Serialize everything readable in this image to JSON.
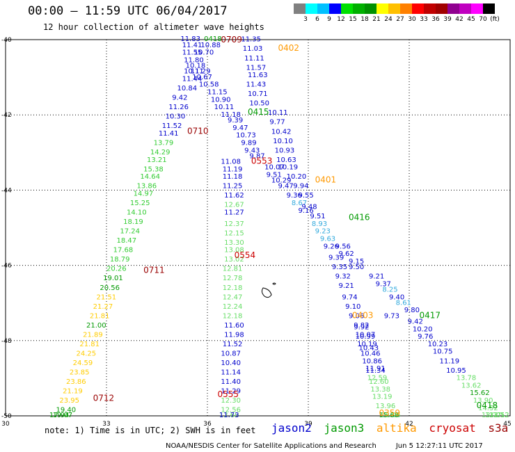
{
  "header": {
    "title": "00:00 – 11:59 UTC 06/04/2017",
    "subtitle": "12 hour collection of altimeter wave heights"
  },
  "colorbar": {
    "colors": [
      "#808080",
      "#00ffff",
      "#00c0ff",
      "#0000ff",
      "#00e000",
      "#00b000",
      "#009000",
      "#ffff00",
      "#ffc000",
      "#ff8000",
      "#ff0000",
      "#c00000",
      "#a00000",
      "#900090",
      "#c000c0",
      "#ff00ff",
      "#000000"
    ],
    "labels": [
      "3",
      "6",
      "9",
      "12",
      "15",
      "18",
      "21",
      "24",
      "27",
      "30",
      "33",
      "36",
      "39",
      "42",
      "45",
      "70",
      "(ft)"
    ]
  },
  "map": {
    "x_ticks": [
      "30",
      "33",
      "36",
      "39",
      "42",
      "45"
    ],
    "y_ticks": [
      "-40",
      "-42",
      "-44",
      "-46",
      "-48",
      "-50"
    ],
    "lon_range": [
      30,
      45
    ],
    "lat_range": [
      -50,
      -40
    ]
  },
  "legend": {
    "jason2": {
      "label": "jason2",
      "color": "#0000cc"
    },
    "jason3": {
      "label": "jason3",
      "color": "#009900"
    },
    "altika": {
      "label": "altika",
      "color": "#ff9900"
    },
    "cryosat": {
      "label": "cryosat",
      "color": "#cc0000"
    },
    "s3a": {
      "label": "s3a",
      "color": "#990000"
    }
  },
  "note": "note: 1) Time is in UTC; 2) SWH is in feet",
  "footer": {
    "center": "NOAA/NESDIS Center for Satellite Applications and Research",
    "timestamp": "Jun  5 12:27:11 UTC 2017"
  },
  "time_labels": [
    {
      "text": "0709",
      "lon": 36.4,
      "lat": -40.0,
      "color": "#990000"
    },
    {
      "text": "0402",
      "lon": 38.1,
      "lat": -40.3,
      "color": "#ff9900"
    },
    {
      "text": "0415",
      "lon": 37.2,
      "lat": -42.0,
      "color": "#009900"
    },
    {
      "text": "0710",
      "lon": 35.4,
      "lat": -42.5,
      "color": "#990000"
    },
    {
      "text": "0553",
      "lon": 37.3,
      "lat": -43.3,
      "color": "#cc0000"
    },
    {
      "text": "0401",
      "lon": 39.2,
      "lat": -43.8,
      "color": "#ff9900"
    },
    {
      "text": "0416",
      "lon": 40.2,
      "lat": -44.8,
      "color": "#009900"
    },
    {
      "text": "0554",
      "lon": 36.8,
      "lat": -45.8,
      "color": "#cc0000"
    },
    {
      "text": "0711",
      "lon": 34.1,
      "lat": -46.2,
      "color": "#990000"
    },
    {
      "text": "0403",
      "lon": 40.3,
      "lat": -47.4,
      "color": "#ff9900"
    },
    {
      "text": "0417",
      "lon": 42.3,
      "lat": -47.4,
      "color": "#009900"
    },
    {
      "text": "0555",
      "lon": 36.3,
      "lat": -49.5,
      "color": "#cc0000"
    },
    {
      "text": "0712",
      "lon": 32.6,
      "lat": -49.6,
      "color": "#990000"
    },
    {
      "text": "0359",
      "lon": 41.1,
      "lat": -50.0,
      "color": "#ff9900"
    },
    {
      "text": "0418",
      "lon": 44.0,
      "lat": -49.8,
      "color": "#009900"
    }
  ],
  "points": [
    {
      "v": "11.83",
      "lon": 35.2,
      "lat": -40.0,
      "c": "#0000cc"
    },
    {
      "v": "0418",
      "lon": 35.9,
      "lat": -40.0,
      "c": "#009900"
    },
    {
      "v": "11.35",
      "lon": 37.0,
      "lat": -40.05,
      "c": "#0000cc"
    },
    {
      "v": "11.41",
      "lon": 35.25,
      "lat": -40.2,
      "c": "#0000cc"
    },
    {
      "v": "10.88",
      "lon": 35.8,
      "lat": -40.2,
      "c": "#0000cc"
    },
    {
      "v": "11.55",
      "lon": 35.25,
      "lat": -40.4,
      "c": "#0000cc"
    },
    {
      "v": "10.70",
      "lon": 35.6,
      "lat": -40.4,
      "c": "#0000cc"
    },
    {
      "v": "11.03",
      "lon": 37.05,
      "lat": -40.3,
      "c": "#0000cc"
    },
    {
      "v": "11.80",
      "lon": 35.3,
      "lat": -40.6,
      "c": "#0000cc"
    },
    {
      "v": "11.11",
      "lon": 37.1,
      "lat": -40.55,
      "c": "#0000cc"
    },
    {
      "v": "10.18",
      "lon": 35.35,
      "lat": -40.75,
      "c": "#0000cc"
    },
    {
      "v": "11.57",
      "lon": 37.15,
      "lat": -40.8,
      "c": "#0000cc"
    },
    {
      "v": "10.11",
      "lon": 35.3,
      "lat": -40.9,
      "c": "#0000cc"
    },
    {
      "v": "11.29",
      "lon": 35.5,
      "lat": -40.9,
      "c": "#0000cc"
    },
    {
      "v": "11.63",
      "lon": 37.2,
      "lat": -41.0,
      "c": "#0000cc"
    },
    {
      "v": "11.44",
      "lon": 35.25,
      "lat": -41.1,
      "c": "#0000cc"
    },
    {
      "v": "10.67",
      "lon": 35.55,
      "lat": -41.05,
      "c": "#0000cc"
    },
    {
      "v": "10.58",
      "lon": 35.75,
      "lat": -41.25,
      "c": "#0000cc"
    },
    {
      "v": "11.43",
      "lon": 37.15,
      "lat": -41.25,
      "c": "#0000cc"
    },
    {
      "v": "10.84",
      "lon": 35.1,
      "lat": -41.35,
      "c": "#0000cc"
    },
    {
      "v": "11.15",
      "lon": 36.0,
      "lat": -41.45,
      "c": "#0000cc"
    },
    {
      "v": "10.71",
      "lon": 37.2,
      "lat": -41.5,
      "c": "#0000cc"
    },
    {
      "v": "9.42",
      "lon": 34.95,
      "lat": -41.6,
      "c": "#0000cc"
    },
    {
      "v": "10.90",
      "lon": 36.1,
      "lat": -41.65,
      "c": "#0000cc"
    },
    {
      "v": "10.50",
      "lon": 37.25,
      "lat": -41.75,
      "c": "#0000cc"
    },
    {
      "v": "11.26",
      "lon": 34.85,
      "lat": -41.85,
      "c": "#0000cc"
    },
    {
      "v": "10.11",
      "lon": 36.2,
      "lat": -41.85,
      "c": "#0000cc"
    },
    {
      "v": "11.18",
      "lon": 36.4,
      "lat": -42.05,
      "c": "#0000cc"
    },
    {
      "v": "10.11",
      "lon": 37.8,
      "lat": -42.0,
      "c": "#0000cc"
    },
    {
      "v": "10.30",
      "lon": 34.75,
      "lat": -42.1,
      "c": "#0000cc"
    },
    {
      "v": "9.39",
      "lon": 36.6,
      "lat": -42.2,
      "c": "#0000cc"
    },
    {
      "v": "9.77",
      "lon": 37.85,
      "lat": -42.25,
      "c": "#0000cc"
    },
    {
      "v": "11.52",
      "lon": 34.65,
      "lat": -42.35,
      "c": "#0000cc"
    },
    {
      "v": "9.47",
      "lon": 36.75,
      "lat": -42.4,
      "c": "#0000cc"
    },
    {
      "v": "10.42",
      "lon": 37.9,
      "lat": -42.5,
      "c": "#0000cc"
    },
    {
      "v": "11.41",
      "lon": 34.55,
      "lat": -42.55,
      "c": "#0000cc"
    },
    {
      "v": "10.73",
      "lon": 36.85,
      "lat": -42.6,
      "c": "#0000cc"
    },
    {
      "v": "13.79",
      "lon": 34.4,
      "lat": -42.8,
      "c": "#33cc33"
    },
    {
      "v": "9.89",
      "lon": 37.0,
      "lat": -42.8,
      "c": "#0000cc"
    },
    {
      "v": "10.10",
      "lon": 37.95,
      "lat": -42.75,
      "c": "#0000cc"
    },
    {
      "v": "9.43",
      "lon": 37.1,
      "lat": -43.0,
      "c": "#0000cc"
    },
    {
      "v": "14.29",
      "lon": 34.3,
      "lat": -43.05,
      "c": "#33cc33"
    },
    {
      "v": "10.93",
      "lon": 38.0,
      "lat": -43.0,
      "c": "#0000cc"
    },
    {
      "v": "9.87",
      "lon": 37.25,
      "lat": -43.15,
      "c": "#0000cc"
    },
    {
      "v": "13.21",
      "lon": 34.2,
      "lat": -43.25,
      "c": "#33cc33"
    },
    {
      "v": "10.63",
      "lon": 38.05,
      "lat": -43.25,
      "c": "#0000cc"
    },
    {
      "v": "11.08",
      "lon": 36.4,
      "lat": -43.3,
      "c": "#0000cc"
    },
    {
      "v": "15.38",
      "lon": 34.1,
      "lat": -43.5,
      "c": "#33cc33"
    },
    {
      "v": "11.19",
      "lon": 36.45,
      "lat": -43.5,
      "c": "#0000cc"
    },
    {
      "v": "10.07",
      "lon": 37.7,
      "lat": -43.45,
      "c": "#0000cc"
    },
    {
      "v": "10.19",
      "lon": 38.1,
      "lat": -43.45,
      "c": "#0000cc"
    },
    {
      "v": "14.64",
      "lon": 34.0,
      "lat": -43.7,
      "c": "#33cc33"
    },
    {
      "v": "11.18",
      "lon": 36.45,
      "lat": -43.7,
      "c": "#0000cc"
    },
    {
      "v": "9.51",
      "lon": 37.75,
      "lat": -43.65,
      "c": "#0000cc"
    },
    {
      "v": "10.20",
      "lon": 38.35,
      "lat": -43.7,
      "c": "#0000cc"
    },
    {
      "v": "10.29",
      "lon": 37.9,
      "lat": -43.8,
      "c": "#0000cc"
    },
    {
      "v": "13.86",
      "lon": 33.9,
      "lat": -43.95,
      "c": "#33cc33"
    },
    {
      "v": "11.25",
      "lon": 36.45,
      "lat": -43.95,
      "c": "#0000cc"
    },
    {
      "v": "9.47",
      "lon": 38.1,
      "lat": -43.95,
      "c": "#0000cc"
    },
    {
      "v": "9.94",
      "lon": 38.55,
      "lat": -43.95,
      "c": "#0000cc"
    },
    {
      "v": "14.97",
      "lon": 33.8,
      "lat": -44.15,
      "c": "#33cc33"
    },
    {
      "v": "11.62",
      "lon": 36.5,
      "lat": -44.2,
      "c": "#0000cc"
    },
    {
      "v": "9.36",
      "lon": 38.35,
      "lat": -44.2,
      "c": "#0000cc"
    },
    {
      "v": "9.55",
      "lon": 38.7,
      "lat": -44.2,
      "c": "#0000cc"
    },
    {
      "v": "15.25",
      "lon": 33.7,
      "lat": -44.4,
      "c": "#33cc33"
    },
    {
      "v": "12.67",
      "lon": 36.5,
      "lat": -44.45,
      "c": "#66dd66"
    },
    {
      "v": "8.67",
      "lon": 38.5,
      "lat": -44.4,
      "c": "#33aadd"
    },
    {
      "v": "9.48",
      "lon": 38.8,
      "lat": -44.5,
      "c": "#0000cc"
    },
    {
      "v": "14.10",
      "lon": 33.6,
      "lat": -44.65,
      "c": "#33cc33"
    },
    {
      "v": "11.27",
      "lon": 36.5,
      "lat": -44.65,
      "c": "#0000cc"
    },
    {
      "v": "9.16",
      "lon": 38.7,
      "lat": -44.6,
      "c": "#0000cc"
    },
    {
      "v": "9.51",
      "lon": 39.05,
      "lat": -44.75,
      "c": "#0000cc"
    },
    {
      "v": "18.19",
      "lon": 33.5,
      "lat": -44.9,
      "c": "#33cc33"
    },
    {
      "v": "12.37",
      "lon": 36.5,
      "lat": -44.95,
      "c": "#66dd66"
    },
    {
      "v": "8.93",
      "lon": 39.1,
      "lat": -44.95,
      "c": "#33aadd"
    },
    {
      "v": "17.24",
      "lon": 33.4,
      "lat": -45.15,
      "c": "#33cc33"
    },
    {
      "v": "12.15",
      "lon": 36.5,
      "lat": -45.2,
      "c": "#66dd66"
    },
    {
      "v": "9.23",
      "lon": 39.2,
      "lat": -45.15,
      "c": "#33aadd"
    },
    {
      "v": "18.47",
      "lon": 33.3,
      "lat": -45.4,
      "c": "#33cc33"
    },
    {
      "v": "13.30",
      "lon": 36.5,
      "lat": -45.45,
      "c": "#66dd66"
    },
    {
      "v": "9.63",
      "lon": 39.35,
      "lat": -45.35,
      "c": "#33aadd"
    },
    {
      "v": "17.68",
      "lon": 33.2,
      "lat": -45.65,
      "c": "#33cc33"
    },
    {
      "v": "13.08",
      "lon": 36.5,
      "lat": -45.65,
      "c": "#66dd66"
    },
    {
      "v": "9.26",
      "lon": 39.45,
      "lat": -45.55,
      "c": "#0000cc"
    },
    {
      "v": "9.56",
      "lon": 39.8,
      "lat": -45.55,
      "c": "#0000cc"
    },
    {
      "v": "9.62",
      "lon": 39.9,
      "lat": -45.75,
      "c": "#0000cc"
    },
    {
      "v": "18.79",
      "lon": 33.1,
      "lat": -45.9,
      "c": "#33cc33"
    },
    {
      "v": "13.02",
      "lon": 36.5,
      "lat": -45.9,
      "c": "#66dd66"
    },
    {
      "v": "9.39",
      "lon": 39.6,
      "lat": -45.85,
      "c": "#0000cc"
    },
    {
      "v": "9.15",
      "lon": 40.2,
      "lat": -45.95,
      "c": "#0000cc"
    },
    {
      "v": "20.26",
      "lon": 33.0,
      "lat": -46.15,
      "c": "#33cc33"
    },
    {
      "v": "12.81",
      "lon": 36.45,
      "lat": -46.15,
      "c": "#66dd66"
    },
    {
      "v": "9.35",
      "lon": 39.7,
      "lat": -46.1,
      "c": "#0000cc"
    },
    {
      "v": "9.50",
      "lon": 40.2,
      "lat": -46.1,
      "c": "#0000cc"
    },
    {
      "v": "19.01",
      "lon": 32.9,
      "lat": -46.4,
      "c": "#009900"
    },
    {
      "v": "12.78",
      "lon": 36.45,
      "lat": -46.4,
      "c": "#66dd66"
    },
    {
      "v": "9.32",
      "lon": 39.8,
      "lat": -46.35,
      "c": "#0000cc"
    },
    {
      "v": "9.21",
      "lon": 40.8,
      "lat": -46.35,
      "c": "#0000cc"
    },
    {
      "v": "20.56",
      "lon": 32.8,
      "lat": -46.65,
      "c": "#009900"
    },
    {
      "v": "12.18",
      "lon": 36.45,
      "lat": -46.65,
      "c": "#66dd66"
    },
    {
      "v": "9.21",
      "lon": 39.9,
      "lat": -46.6,
      "c": "#0000cc"
    },
    {
      "v": "9.37",
      "lon": 41.0,
      "lat": -46.55,
      "c": "#0000cc"
    },
    {
      "v": "8.25",
      "lon": 41.2,
      "lat": -46.7,
      "c": "#33aadd"
    },
    {
      "v": "21.51",
      "lon": 32.7,
      "lat": -46.9,
      "c": "#ffcc00"
    },
    {
      "v": "12.47",
      "lon": 36.45,
      "lat": -46.9,
      "c": "#66dd66"
    },
    {
      "v": "9.74",
      "lon": 40.0,
      "lat": -46.9,
      "c": "#0000cc"
    },
    {
      "v": "9.40",
      "lon": 41.4,
      "lat": -46.9,
      "c": "#0000cc"
    },
    {
      "v": "21.27",
      "lon": 32.6,
      "lat": -47.15,
      "c": "#ffcc00"
    },
    {
      "v": "12.24",
      "lon": 36.45,
      "lat": -47.15,
      "c": "#66dd66"
    },
    {
      "v": "9.10",
      "lon": 40.1,
      "lat": -47.15,
      "c": "#0000cc"
    },
    {
      "v": "8.61",
      "lon": 41.6,
      "lat": -47.05,
      "c": "#33aadd"
    },
    {
      "v": "9.80",
      "lon": 41.85,
      "lat": -47.25,
      "c": "#0000cc"
    },
    {
      "v": "21.81",
      "lon": 32.5,
      "lat": -47.4,
      "c": "#ffcc00"
    },
    {
      "v": "12.18",
      "lon": 36.45,
      "lat": -47.4,
      "c": "#66dd66"
    },
    {
      "v": "9.06",
      "lon": 40.2,
      "lat": -47.4,
      "c": "#0000cc"
    },
    {
      "v": "9.73",
      "lon": 41.25,
      "lat": -47.4,
      "c": "#0000cc"
    },
    {
      "v": "9.42",
      "lon": 41.95,
      "lat": -47.55,
      "c": "#0000cc"
    },
    {
      "v": "21.00",
      "lon": 32.4,
      "lat": -47.65,
      "c": "#009900"
    },
    {
      "v": "11.60",
      "lon": 36.5,
      "lat": -47.65,
      "c": "#0000cc"
    },
    {
      "v": "9.82",
      "lon": 40.35,
      "lat": -47.65,
      "c": "#0000cc"
    },
    {
      "v": "9.92",
      "lon": 40.35,
      "lat": -47.7,
      "c": "#0000cc"
    },
    {
      "v": "10.20",
      "lon": 42.1,
      "lat": -47.75,
      "c": "#0000cc"
    },
    {
      "v": "21.89",
      "lon": 32.3,
      "lat": -47.9,
      "c": "#ffcc00"
    },
    {
      "v": "11.98",
      "lon": 36.5,
      "lat": -47.9,
      "c": "#0000cc"
    },
    {
      "v": "10.07",
      "lon": 40.4,
      "lat": -47.9,
      "c": "#0000cc"
    },
    {
      "v": "10.99",
      "lon": 40.4,
      "lat": -47.95,
      "c": "#0000cc"
    },
    {
      "v": "9.76",
      "lon": 42.25,
      "lat": -47.95,
      "c": "#0000cc"
    },
    {
      "v": "21.81",
      "lon": 32.2,
      "lat": -48.15,
      "c": "#ffcc00"
    },
    {
      "v": "11.52",
      "lon": 36.45,
      "lat": -48.15,
      "c": "#0000cc"
    },
    {
      "v": "10.19",
      "lon": 40.45,
      "lat": -48.15,
      "c": "#0000cc"
    },
    {
      "v": "10.43",
      "lon": 40.5,
      "lat": -48.25,
      "c": "#0000cc"
    },
    {
      "v": "10.23",
      "lon": 42.55,
      "lat": -48.15,
      "c": "#0000cc"
    },
    {
      "v": "24.25",
      "lon": 32.1,
      "lat": -48.4,
      "c": "#ffcc00"
    },
    {
      "v": "10.87",
      "lon": 36.4,
      "lat": -48.4,
      "c": "#0000cc"
    },
    {
      "v": "10.46",
      "lon": 40.55,
      "lat": -48.4,
      "c": "#0000cc"
    },
    {
      "v": "10.75",
      "lon": 42.7,
      "lat": -48.35,
      "c": "#0000cc"
    },
    {
      "v": "24.59",
      "lon": 32.0,
      "lat": -48.65,
      "c": "#ffcc00"
    },
    {
      "v": "10.40",
      "lon": 36.4,
      "lat": -48.65,
      "c": "#0000cc"
    },
    {
      "v": "10.86",
      "lon": 40.6,
      "lat": -48.6,
      "c": "#0000cc"
    },
    {
      "v": "11.19",
      "lon": 42.9,
      "lat": -48.6,
      "c": "#0000cc"
    },
    {
      "v": "23.85",
      "lon": 31.9,
      "lat": -48.9,
      "c": "#ffcc00"
    },
    {
      "v": "11.14",
      "lon": 36.4,
      "lat": -48.9,
      "c": "#0000cc"
    },
    {
      "v": "11.34",
      "lon": 40.7,
      "lat": -48.85,
      "c": "#0000cc"
    },
    {
      "v": "11.91",
      "lon": 40.7,
      "lat": -48.8,
      "c": "#0000cc"
    },
    {
      "v": "10.95",
      "lon": 43.1,
      "lat": -48.85,
      "c": "#0000cc"
    },
    {
      "v": "23.86",
      "lon": 31.8,
      "lat": -49.15,
      "c": "#ffcc00"
    },
    {
      "v": "11.40",
      "lon": 36.4,
      "lat": -49.15,
      "c": "#0000cc"
    },
    {
      "v": "12.59",
      "lon": 40.75,
      "lat": -49.05,
      "c": "#66dd66"
    },
    {
      "v": "12.60",
      "lon": 40.8,
      "lat": -49.15,
      "c": "#66dd66"
    },
    {
      "v": "13.78",
      "lon": 43.4,
      "lat": -49.05,
      "c": "#66dd66"
    },
    {
      "v": "21.19",
      "lon": 31.7,
      "lat": -49.4,
      "c": "#ffcc00"
    },
    {
      "v": "11.29",
      "lon": 36.4,
      "lat": -49.4,
      "c": "#0000cc"
    },
    {
      "v": "13.38",
      "lon": 40.85,
      "lat": -49.35,
      "c": "#66dd66"
    },
    {
      "v": "13.62",
      "lon": 43.55,
      "lat": -49.25,
      "c": "#66dd66"
    },
    {
      "v": "15.62",
      "lon": 43.8,
      "lat": -49.45,
      "c": "#009900"
    },
    {
      "v": "23.95",
      "lon": 31.6,
      "lat": -49.65,
      "c": "#ffcc00"
    },
    {
      "v": "12.30",
      "lon": 36.4,
      "lat": -49.65,
      "c": "#66dd66"
    },
    {
      "v": "13.19",
      "lon": 40.9,
      "lat": -49.55,
      "c": "#66dd66"
    },
    {
      "v": "13.90",
      "lon": 43.9,
      "lat": -49.65,
      "c": "#66dd66"
    },
    {
      "v": "19.40",
      "lon": 31.5,
      "lat": -49.9,
      "c": "#009900"
    },
    {
      "v": "12.56",
      "lon": 36.4,
      "lat": -49.9,
      "c": "#66dd66"
    },
    {
      "v": "13.96",
      "lon": 41.0,
      "lat": -49.8,
      "c": "#66dd66"
    },
    {
      "v": "14.52",
      "lon": 44.05,
      "lat": -49.85,
      "c": "#66dd66"
    },
    {
      "v": "19.07",
      "lon": 31.4,
      "lat": -50.1,
      "c": "#009900"
    },
    {
      "v": "12.60",
      "lon": 36.35,
      "lat": -50.1,
      "c": "#66dd66"
    },
    {
      "v": "15.68",
      "lon": 41.1,
      "lat": -50.05,
      "c": "#009900"
    },
    {
      "v": "13.77",
      "lon": 44.15,
      "lat": -50.05,
      "c": "#66dd66"
    },
    {
      "v": "17.94",
      "lon": 31.3,
      "lat": -50.35,
      "c": "#009900"
    },
    {
      "v": "11.73",
      "lon": 36.35,
      "lat": -50.35,
      "c": "#0000cc"
    },
    {
      "v": "16.06",
      "lon": 41.15,
      "lat": -50.3,
      "c": "#66dd66"
    },
    {
      "v": "13.05",
      "lon": 44.25,
      "lat": -50.25,
      "c": "#66dd66"
    },
    {
      "v": "13.52",
      "lon": 44.4,
      "lat": -50.45,
      "c": "#66dd66"
    },
    {
      "v": "12.12",
      "lon": 44.7,
      "lat": -50.6,
      "c": "#66dd66"
    }
  ]
}
